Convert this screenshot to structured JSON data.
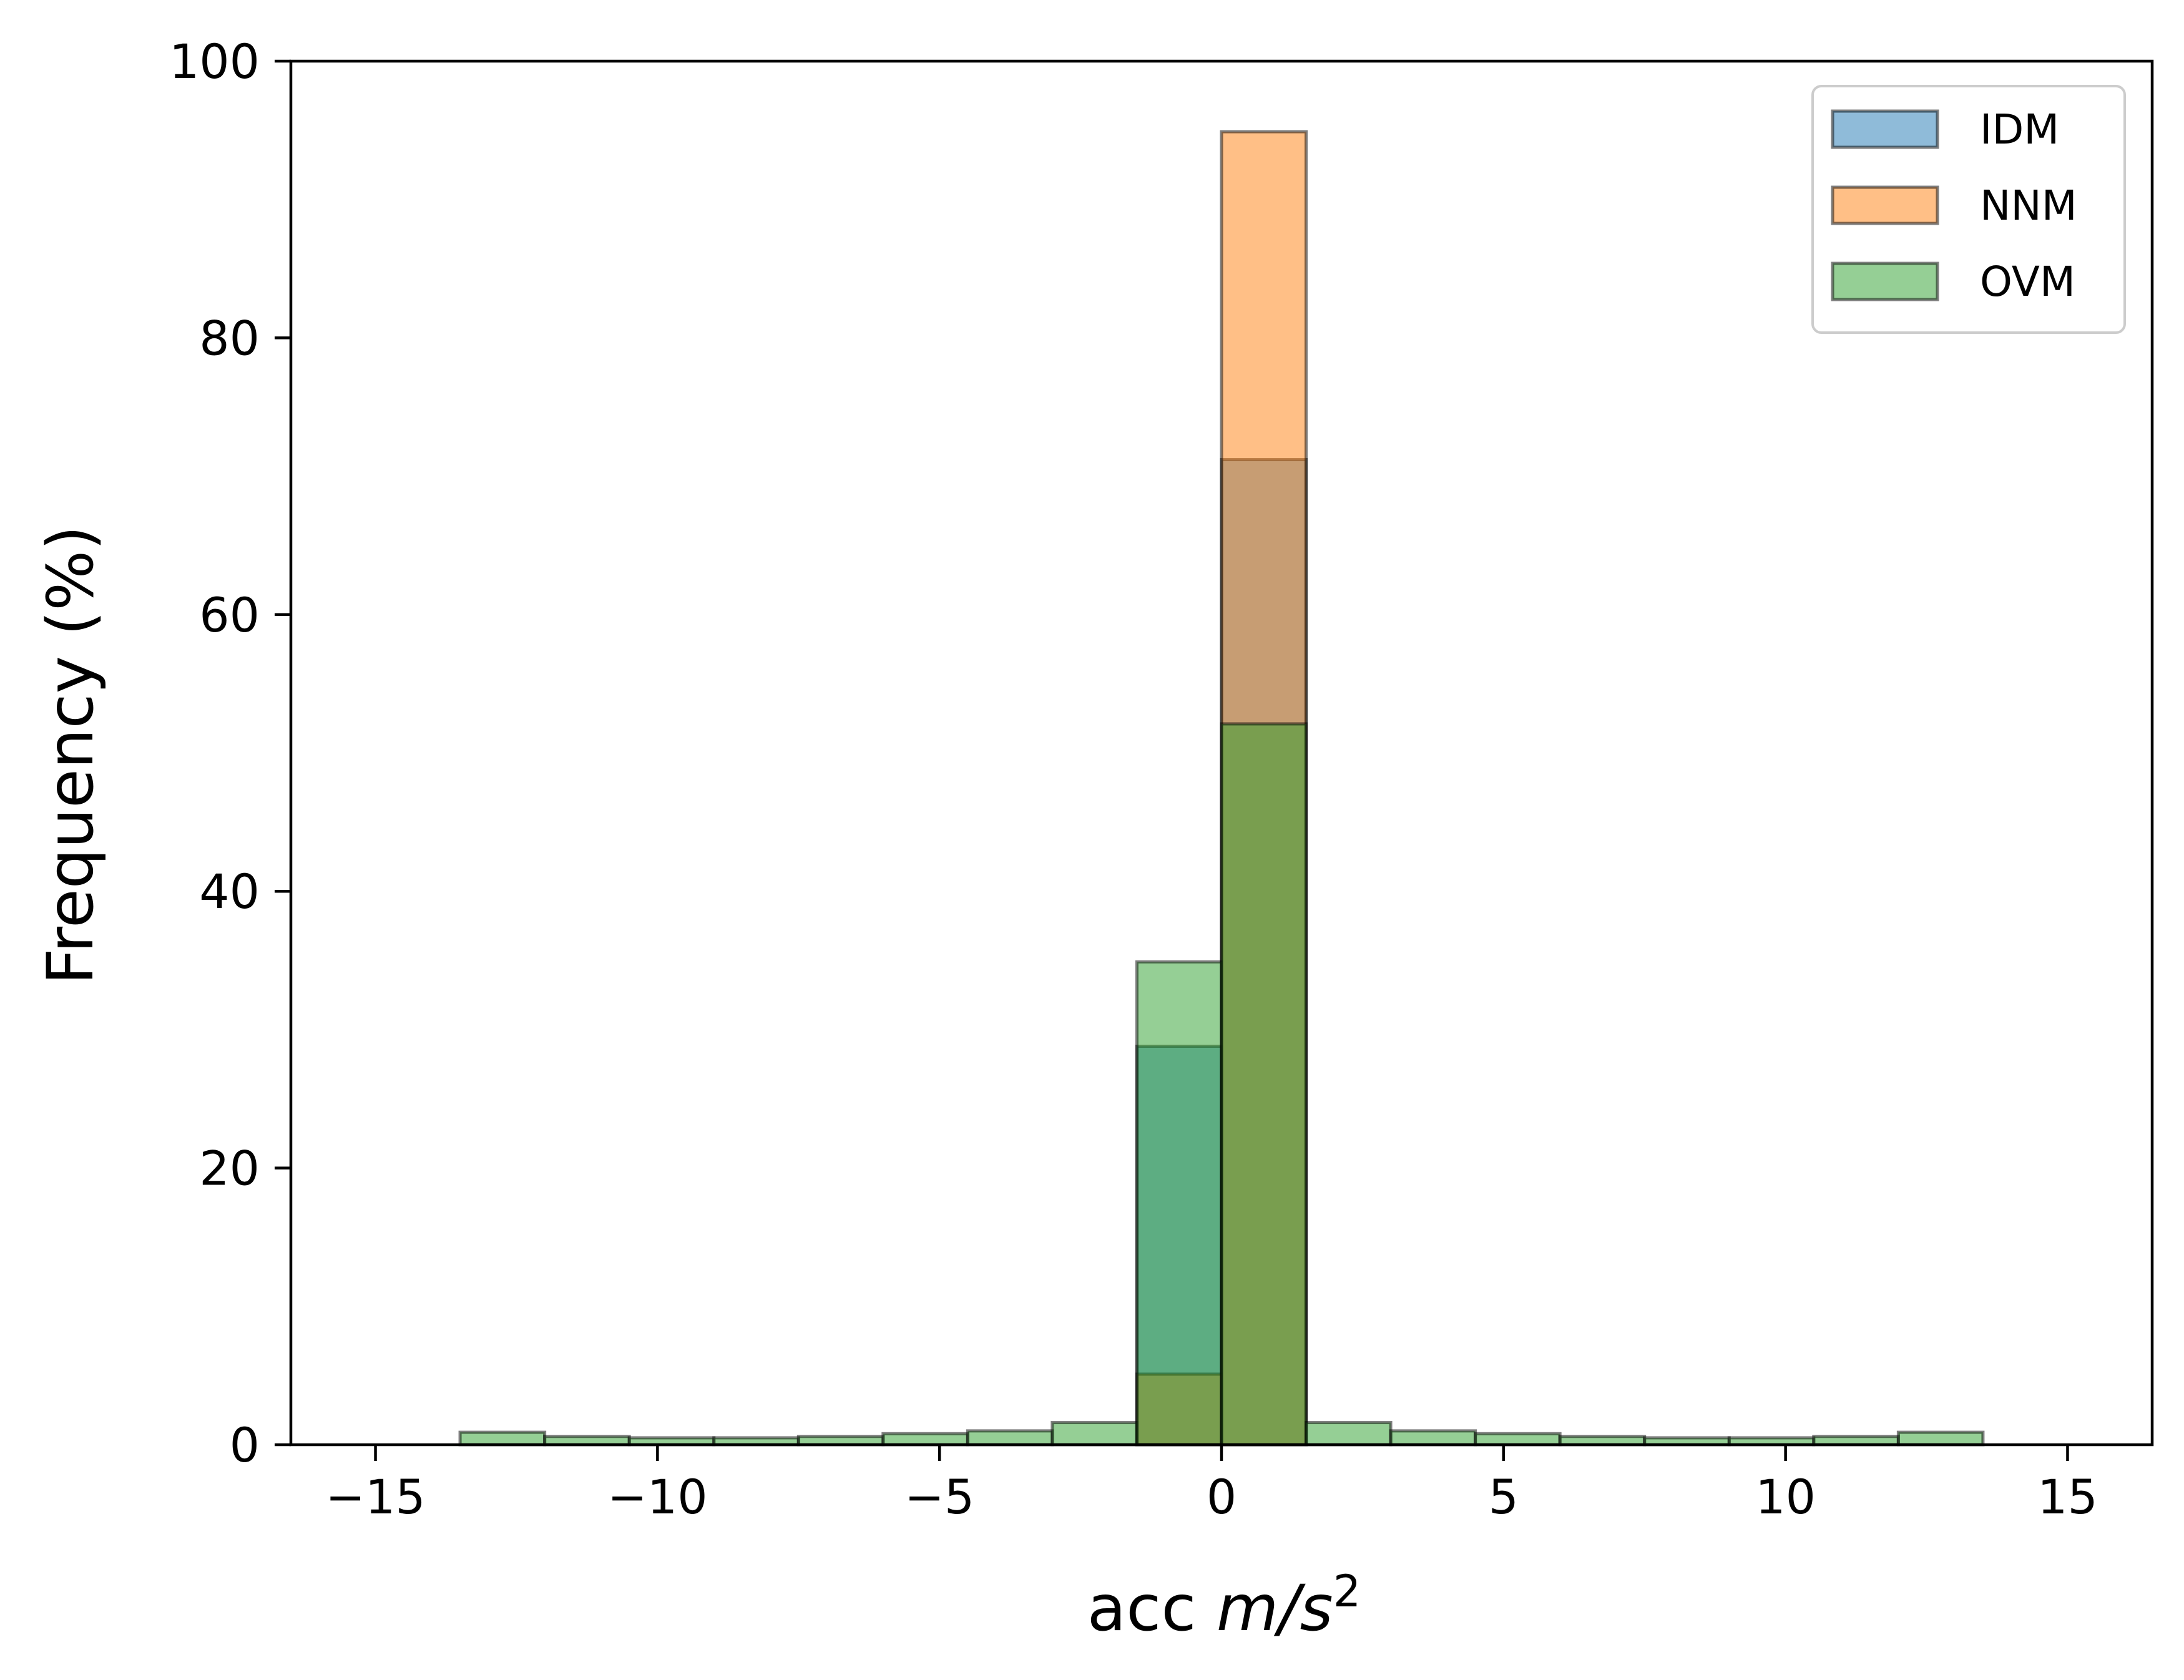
{
  "chart_data": {
    "type": "bar",
    "subtype": "overlapping-histogram",
    "title": "",
    "xlabel": "acc m/s²",
    "xlabel_parts": {
      "plain": "acc ",
      "italic": "m/s",
      "sup": "2"
    },
    "ylabel": "Frequency (%)",
    "xlim": [
      -16.5,
      16.5
    ],
    "ylim": [
      0,
      100
    ],
    "xticks": [
      -15,
      -10,
      -5,
      0,
      5,
      10,
      15
    ],
    "xtick_labels": [
      "−15",
      "−10",
      "−5",
      "0",
      "5",
      "10",
      "15"
    ],
    "yticks": [
      0,
      20,
      40,
      60,
      80,
      100
    ],
    "ytick_labels": [
      "0",
      "20",
      "40",
      "60",
      "80",
      "100"
    ],
    "grid": false,
    "legend_position": "upper-right",
    "bin_edges": [
      -15,
      -13.5,
      -12,
      -10.5,
      -9,
      -7.5,
      -6,
      -4.5,
      -3,
      -1.5,
      0,
      1.5,
      3,
      4.5,
      6,
      7.5,
      9,
      10.5,
      12,
      13.5,
      15
    ],
    "series": [
      {
        "name": "IDM",
        "color": "#1f77b4",
        "values": [
          0,
          0,
          0,
          0,
          0,
          0,
          0,
          0,
          0,
          28.8,
          71.2,
          0,
          0,
          0,
          0,
          0,
          0,
          0,
          0,
          0
        ]
      },
      {
        "name": "NNM",
        "color": "#ff7f0e",
        "values": [
          0,
          0,
          0,
          0,
          0,
          0,
          0,
          0,
          0,
          5.1,
          94.9,
          0,
          0,
          0,
          0,
          0,
          0,
          0,
          0,
          0
        ]
      },
      {
        "name": "OVM",
        "color": "#2ca02c",
        "values": [
          0,
          0.9,
          0.6,
          0.5,
          0.5,
          0.6,
          0.8,
          1.0,
          1.6,
          34.9,
          52.1,
          1.6,
          1.0,
          0.8,
          0.6,
          0.5,
          0.5,
          0.6,
          0.9,
          0
        ]
      }
    ],
    "bar_alpha": 0.5,
    "edge_color": "#000000"
  }
}
